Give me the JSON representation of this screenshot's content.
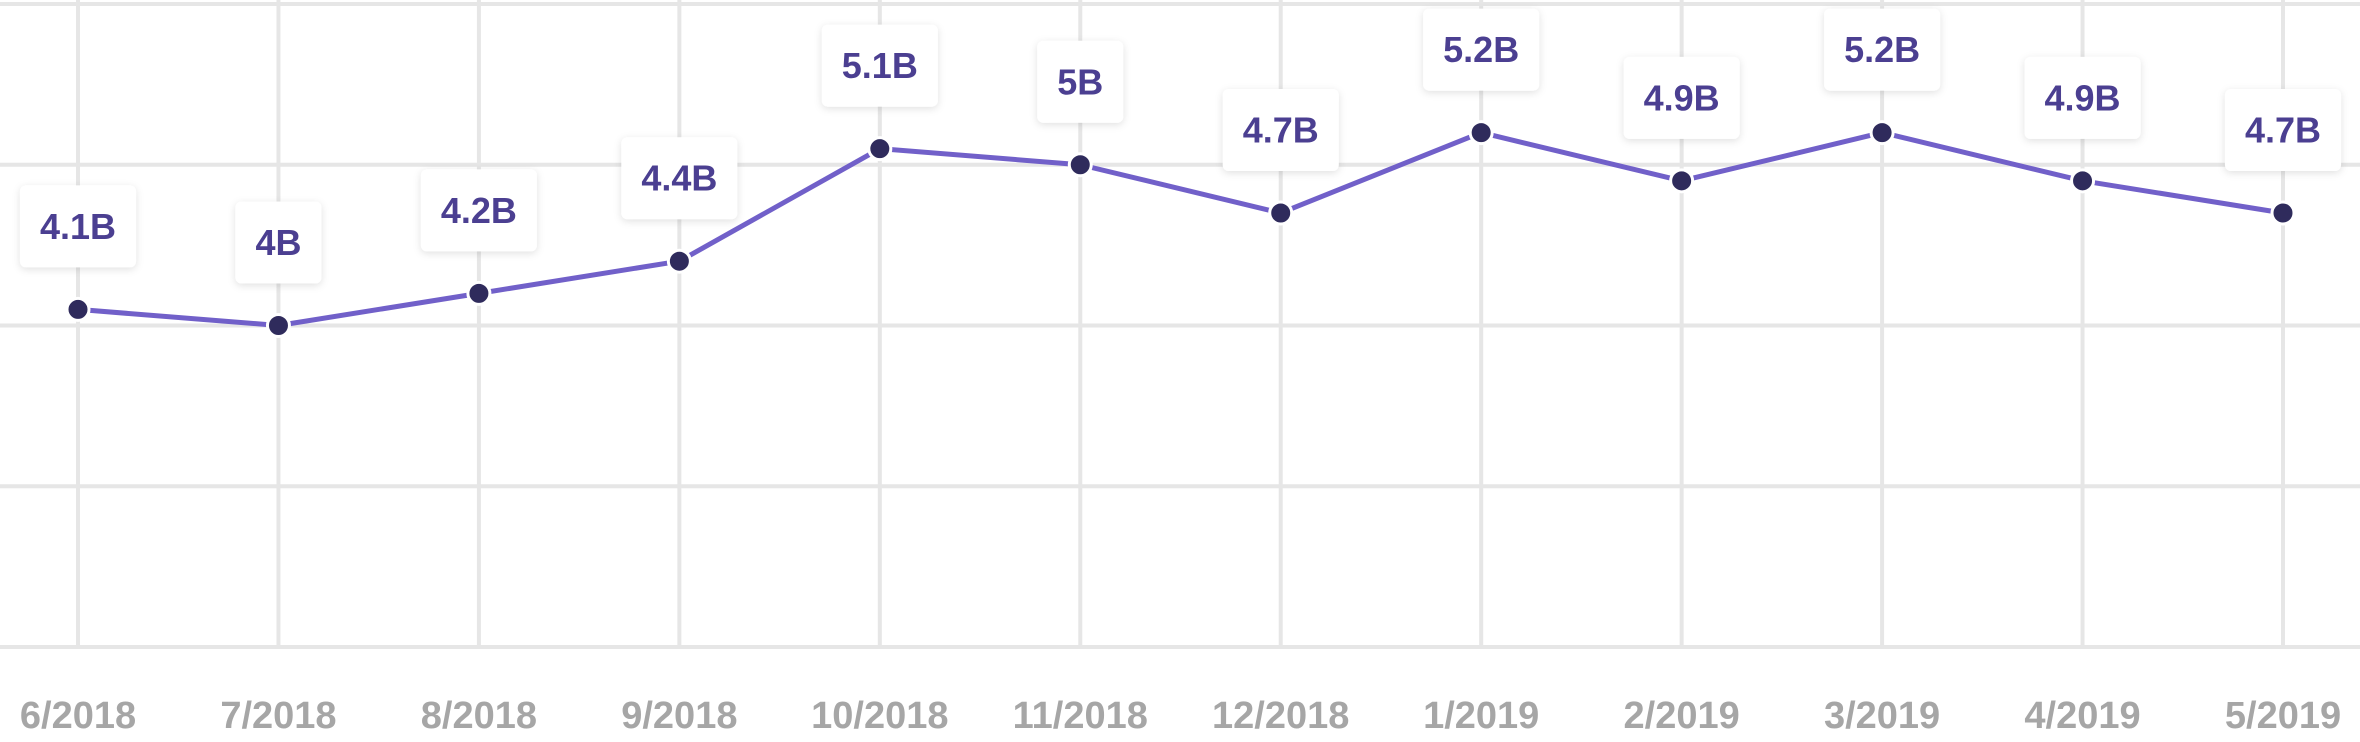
{
  "chart_data": {
    "type": "line",
    "title": "",
    "xlabel": "",
    "ylabel": "",
    "grid": true,
    "ylim": [
      2.0,
      6.0
    ],
    "categories": [
      "6/2018",
      "7/2018",
      "8/2018",
      "9/2018",
      "10/2018",
      "11/2018",
      "12/2018",
      "1/2019",
      "2/2019",
      "3/2019",
      "4/2019",
      "5/2019"
    ],
    "series": [
      {
        "values": [
          4.1,
          4.0,
          4.2,
          4.4,
          5.1,
          5.0,
          4.7,
          5.2,
          4.9,
          5.2,
          4.9,
          4.7
        ],
        "labels": [
          "4.1B",
          "4B",
          "4.2B",
          "4.4B",
          "5.1B",
          "5B",
          "4.7B",
          "5.2B",
          "4.9B",
          "5.2B",
          "4.9B",
          "4.7B"
        ]
      }
    ],
    "colors": {
      "line": "#7160c9",
      "point": "#2f2b5c",
      "point_stroke": "#ffffff",
      "label_text": "#4b3f91",
      "grid": "#e6e6e6",
      "tick": "#a6a6a6",
      "label_bg": "#ffffff"
    }
  }
}
